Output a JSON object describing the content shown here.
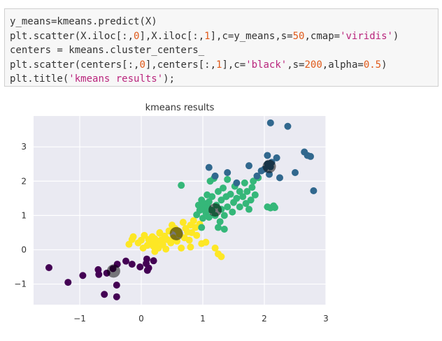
{
  "code_cell": {
    "lines": [
      [
        {
          "t": "plain",
          "v": "y_means=kmeans.predict(X)"
        }
      ],
      [
        {
          "t": "plain",
          "v": "plt.scatter(X.iloc[:,"
        },
        {
          "t": "num",
          "v": "0"
        },
        {
          "t": "plain",
          "v": "],X.iloc[:,"
        },
        {
          "t": "num",
          "v": "1"
        },
        {
          "t": "plain",
          "v": "],c=y_means,s="
        },
        {
          "t": "num",
          "v": "50"
        },
        {
          "t": "plain",
          "v": ",cmap="
        },
        {
          "t": "str",
          "v": "'viridis'"
        },
        {
          "t": "plain",
          "v": ")"
        }
      ],
      [
        {
          "t": "plain",
          "v": "centers = kmeans.cluster_centers_"
        }
      ],
      [
        {
          "t": "plain",
          "v": "plt.scatter(centers[:,"
        },
        {
          "t": "num",
          "v": "0"
        },
        {
          "t": "plain",
          "v": "],centers[:,"
        },
        {
          "t": "num",
          "v": "1"
        },
        {
          "t": "plain",
          "v": "],c="
        },
        {
          "t": "str",
          "v": "'black'"
        },
        {
          "t": "plain",
          "v": ",s="
        },
        {
          "t": "num",
          "v": "200"
        },
        {
          "t": "plain",
          "v": ",alpha="
        },
        {
          "t": "num",
          "v": "0.5"
        },
        {
          "t": "plain",
          "v": ")"
        }
      ],
      [
        {
          "t": "plain",
          "v": "plt.title("
        },
        {
          "t": "str",
          "v": "'kmeans results'"
        },
        {
          "t": "plain",
          "v": ");"
        }
      ]
    ]
  },
  "chart_data": {
    "type": "scatter",
    "title": "kmeans results",
    "xlabel": "",
    "ylabel": "",
    "xlim": [
      -1.75,
      3.0
    ],
    "ylim": [
      -1.6,
      3.9
    ],
    "xticks": [
      -1,
      0,
      1,
      2,
      3
    ],
    "yticks": [
      -1,
      0,
      1,
      2,
      3
    ],
    "grid": true,
    "background": "#eaeaf2",
    "series": [
      {
        "color": "#440154",
        "points": [
          [
            -1.5,
            -0.52
          ],
          [
            -1.19,
            -0.95
          ],
          [
            -0.95,
            -0.75
          ],
          [
            -0.7,
            -0.58
          ],
          [
            -0.69,
            -0.72
          ],
          [
            -0.6,
            -1.3
          ],
          [
            -0.56,
            -0.68
          ],
          [
            -0.46,
            -0.55
          ],
          [
            -0.4,
            -1.03
          ],
          [
            -0.4,
            -1.37
          ],
          [
            -0.39,
            -0.42
          ],
          [
            -0.25,
            -0.33
          ],
          [
            -0.15,
            -0.42
          ],
          [
            -0.02,
            -0.5
          ],
          [
            0.1,
            -0.6
          ],
          [
            0.12,
            -0.53
          ],
          [
            0.08,
            -0.4
          ],
          [
            0.2,
            -0.32
          ],
          [
            0.09,
            -0.27
          ]
        ]
      },
      {
        "color": "#fde725",
        "points": [
          [
            -0.2,
            0.16
          ],
          [
            -0.15,
            0.3
          ],
          [
            -0.13,
            0.38
          ],
          [
            -0.05,
            0.2
          ],
          [
            0.0,
            0.28
          ],
          [
            0.03,
            0.05
          ],
          [
            0.05,
            0.42
          ],
          [
            0.1,
            0.13
          ],
          [
            0.12,
            0.3
          ],
          [
            0.15,
            0.18
          ],
          [
            0.18,
            0.38
          ],
          [
            0.2,
            0.1
          ],
          [
            0.22,
            0.32
          ],
          [
            0.25,
            0.22
          ],
          [
            0.28,
            0.05
          ],
          [
            0.3,
            0.48
          ],
          [
            0.32,
            0.28
          ],
          [
            0.35,
            0.15
          ],
          [
            0.38,
            0.4
          ],
          [
            0.4,
            0.02
          ],
          [
            0.42,
            0.3
          ],
          [
            0.45,
            0.55
          ],
          [
            0.48,
            0.2
          ],
          [
            0.5,
            0.72
          ],
          [
            0.52,
            0.35
          ],
          [
            0.55,
            0.62
          ],
          [
            0.58,
            0.25
          ],
          [
            0.6,
            0.55
          ],
          [
            0.62,
            0.45
          ],
          [
            0.65,
            0.05
          ],
          [
            0.68,
            0.8
          ],
          [
            0.7,
            0.35
          ],
          [
            0.72,
            0.62
          ],
          [
            0.75,
            0.52
          ],
          [
            0.78,
            0.28
          ],
          [
            0.8,
            0.72
          ],
          [
            0.82,
            0.5
          ],
          [
            0.85,
            0.85
          ],
          [
            0.88,
            0.65
          ],
          [
            0.9,
            0.42
          ],
          [
            0.95,
            0.75
          ],
          [
            0.98,
            0.18
          ],
          [
            1.05,
            0.22
          ],
          [
            0.8,
            0.08
          ],
          [
            1.2,
            0.05
          ],
          [
            1.3,
            -0.2
          ],
          [
            1.25,
            -0.12
          ],
          [
            0.3,
            0.5
          ],
          [
            0.22,
            -0.05
          ]
        ]
      },
      {
        "color": "#35b779",
        "points": [
          [
            0.65,
            1.88
          ],
          [
            0.9,
            1.02
          ],
          [
            0.93,
            1.3
          ],
          [
            0.95,
            1.15
          ],
          [
            0.98,
            1.45
          ],
          [
            1.0,
            0.92
          ],
          [
            1.0,
            1.2
          ],
          [
            1.02,
            1.35
          ],
          [
            1.05,
            1.08
          ],
          [
            1.07,
            1.6
          ],
          [
            1.08,
            1.25
          ],
          [
            1.1,
            0.95
          ],
          [
            1.1,
            1.4
          ],
          [
            1.12,
            2.0
          ],
          [
            1.15,
            1.15
          ],
          [
            1.15,
            1.55
          ],
          [
            1.18,
            2.08
          ],
          [
            1.2,
            1.0
          ],
          [
            1.22,
            1.3
          ],
          [
            1.25,
            1.7
          ],
          [
            1.28,
            0.82
          ],
          [
            1.3,
            1.18
          ],
          [
            1.3,
            1.45
          ],
          [
            1.33,
            1.8
          ],
          [
            1.35,
            1.0
          ],
          [
            1.38,
            1.55
          ],
          [
            1.4,
            1.25
          ],
          [
            1.4,
            2.05
          ],
          [
            1.45,
            1.62
          ],
          [
            1.48,
            1.1
          ],
          [
            1.5,
            1.38
          ],
          [
            1.52,
            1.85
          ],
          [
            1.55,
            1.5
          ],
          [
            1.6,
            1.25
          ],
          [
            1.6,
            1.7
          ],
          [
            1.65,
            1.55
          ],
          [
            1.68,
            1.95
          ],
          [
            1.7,
            1.35
          ],
          [
            1.72,
            1.7
          ],
          [
            1.75,
            1.18
          ],
          [
            1.78,
            1.45
          ],
          [
            1.8,
            1.82
          ],
          [
            1.82,
            2.0
          ],
          [
            1.85,
            1.6
          ],
          [
            1.9,
            2.1
          ],
          [
            2.05,
            1.25
          ],
          [
            2.1,
            1.22
          ],
          [
            2.15,
            1.28
          ],
          [
            2.17,
            1.23
          ],
          [
            1.25,
            0.65
          ],
          [
            0.98,
            0.65
          ],
          [
            1.35,
            0.6
          ]
        ]
      },
      {
        "color": "#31688e",
        "points": [
          [
            1.1,
            2.4
          ],
          [
            1.2,
            2.15
          ],
          [
            1.4,
            2.25
          ],
          [
            1.55,
            1.95
          ],
          [
            1.75,
            2.45
          ],
          [
            1.88,
            2.15
          ],
          [
            1.95,
            2.3
          ],
          [
            2.0,
            2.35
          ],
          [
            2.05,
            2.5
          ],
          [
            2.08,
            2.2
          ],
          [
            2.1,
            2.42
          ],
          [
            2.05,
            2.75
          ],
          [
            2.1,
            3.7
          ],
          [
            2.12,
            2.55
          ],
          [
            2.2,
            2.68
          ],
          [
            2.25,
            2.1
          ],
          [
            2.38,
            3.6
          ],
          [
            2.5,
            2.25
          ],
          [
            2.65,
            2.85
          ],
          [
            2.7,
            2.75
          ],
          [
            2.75,
            2.72
          ],
          [
            2.8,
            1.72
          ]
        ]
      }
    ],
    "centers": {
      "color": "#000000",
      "alpha": 0.5,
      "points": [
        [
          -0.45,
          -0.62
        ],
        [
          0.57,
          0.47
        ],
        [
          1.2,
          1.16
        ],
        [
          2.08,
          2.43
        ]
      ]
    }
  }
}
